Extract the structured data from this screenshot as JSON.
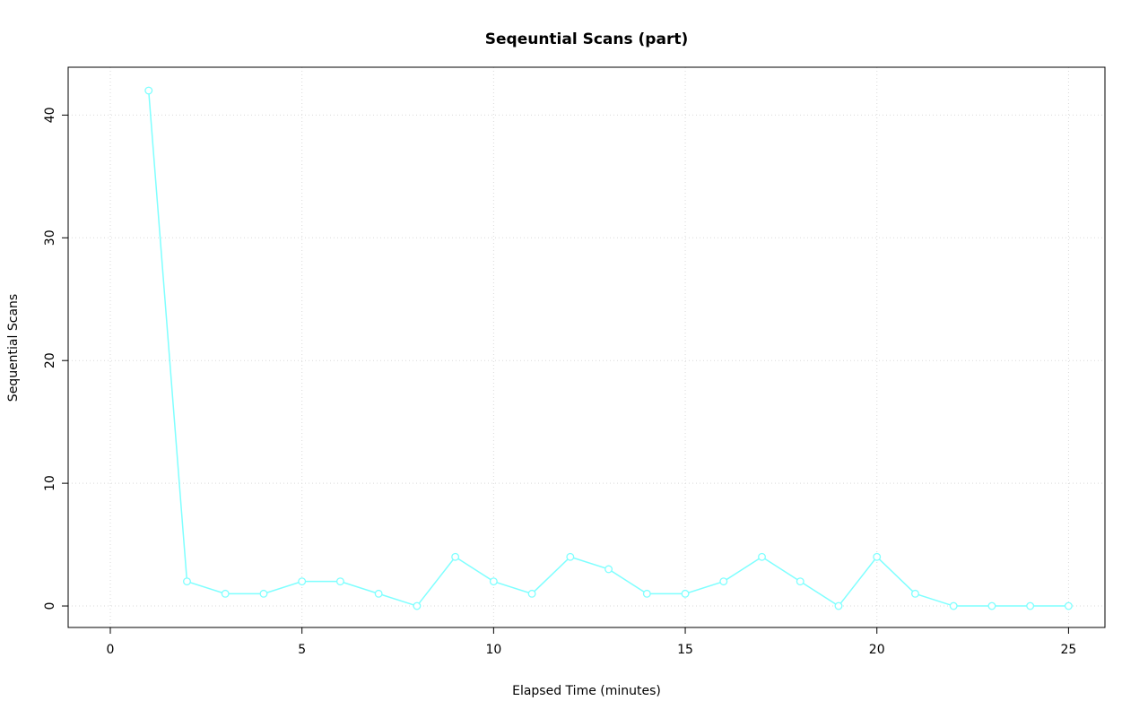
{
  "chart_data": {
    "type": "line",
    "title": "Seqeuntial Scans (part)",
    "xlabel": "Elapsed Time (minutes)",
    "ylabel": "Sequential Scans",
    "x": [
      1,
      2,
      3,
      4,
      5,
      6,
      7,
      8,
      9,
      10,
      11,
      12,
      13,
      14,
      15,
      16,
      17,
      18,
      19,
      20,
      21,
      22,
      23,
      24,
      25
    ],
    "values": [
      42,
      2,
      1,
      1,
      2,
      2,
      1,
      0,
      4,
      2,
      1,
      4,
      3,
      1,
      1,
      2,
      4,
      2,
      0,
      4,
      1,
      0,
      0,
      0,
      0
    ],
    "xticks": [
      0,
      5,
      10,
      15,
      20,
      25
    ],
    "yticks": [
      0,
      10,
      20,
      30,
      40
    ],
    "xlim": [
      -1.1,
      25.95
    ],
    "ylim": [
      -1.75,
      43.9
    ],
    "grid": true,
    "legend_position": "none",
    "style": {
      "line_color": "#7fffff",
      "marker": "open-circle",
      "marker_fill": "#ffffff",
      "grid_color": "#d9d9d9",
      "grid_style": "dotted",
      "axis_color": "#000000",
      "background": "#ffffff"
    }
  }
}
